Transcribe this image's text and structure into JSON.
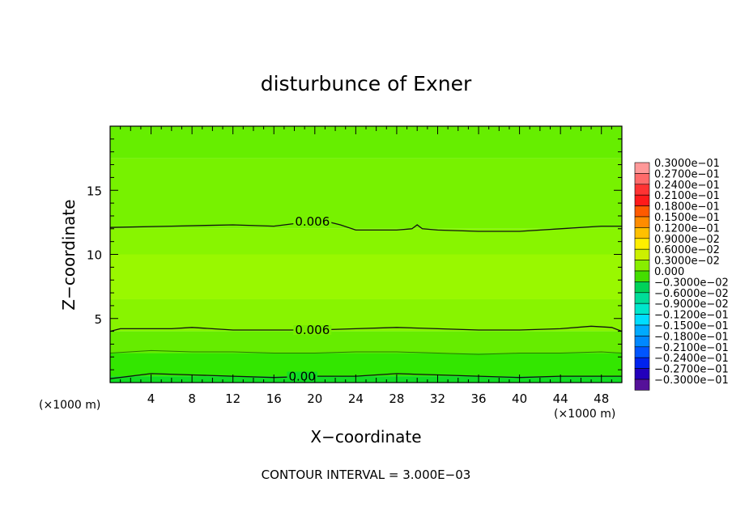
{
  "chart_data": {
    "type": "contour",
    "title": "disturbunce of Exner",
    "xlabel": "X−coordinate",
    "ylabel": "Z−coordinate",
    "x_unit": "(×1000 m)",
    "y_unit": "(×1000 m)",
    "xlim": [
      0,
      50
    ],
    "ylim": [
      0,
      20
    ],
    "x_ticks": [
      4,
      8,
      12,
      16,
      20,
      24,
      28,
      32,
      36,
      40,
      44,
      48
    ],
    "y_ticks": [
      5,
      10,
      15
    ],
    "footer": "CONTOUR INTERVAL = 3.000E−03",
    "contour_interval": 0.003,
    "grid": false,
    "contours": [
      {
        "level": 0.006,
        "label": "0.006",
        "points": [
          [
            0,
            12.1
          ],
          [
            6,
            12.2
          ],
          [
            12,
            12.3
          ],
          [
            16,
            12.2
          ],
          [
            19,
            12.5
          ],
          [
            21,
            12.6
          ],
          [
            22.5,
            12.3
          ],
          [
            24,
            11.9
          ],
          [
            26,
            11.9
          ],
          [
            28,
            11.9
          ],
          [
            29.5,
            12.0
          ],
          [
            30,
            12.3
          ],
          [
            30.5,
            12.0
          ],
          [
            32,
            11.9
          ],
          [
            36,
            11.8
          ],
          [
            40,
            11.8
          ],
          [
            44,
            12.0
          ],
          [
            48,
            12.2
          ],
          [
            50,
            12.2
          ]
        ],
        "label_at": 20
      },
      {
        "level": 0.006,
        "label": "0.006",
        "points": [
          [
            0,
            4.0
          ],
          [
            1,
            4.2
          ],
          [
            6,
            4.2
          ],
          [
            8,
            4.3
          ],
          [
            12,
            4.1
          ],
          [
            16,
            4.1
          ],
          [
            20,
            4.1
          ],
          [
            24,
            4.2
          ],
          [
            28,
            4.3
          ],
          [
            32,
            4.2
          ],
          [
            36,
            4.1
          ],
          [
            40,
            4.1
          ],
          [
            44,
            4.2
          ],
          [
            47,
            4.4
          ],
          [
            49,
            4.3
          ],
          [
            50,
            4.0
          ]
        ],
        "label_at": 20
      },
      {
        "level": 0.0,
        "label": "0.00",
        "points": [
          [
            0,
            0.3
          ],
          [
            4,
            0.7
          ],
          [
            8,
            0.6
          ],
          [
            12,
            0.5
          ],
          [
            16,
            0.4
          ],
          [
            20,
            0.5
          ],
          [
            24,
            0.5
          ],
          [
            28,
            0.7
          ],
          [
            32,
            0.6
          ],
          [
            36,
            0.5
          ],
          [
            40,
            0.4
          ],
          [
            44,
            0.5
          ],
          [
            48,
            0.5
          ],
          [
            50,
            0.5
          ]
        ],
        "label_at": 19
      }
    ],
    "thin_contours": [
      {
        "points": [
          [
            0,
            2.3
          ],
          [
            4,
            2.5
          ],
          [
            8,
            2.4
          ],
          [
            12,
            2.4
          ],
          [
            16,
            2.3
          ],
          [
            20,
            2.3
          ],
          [
            24,
            2.4
          ],
          [
            28,
            2.4
          ],
          [
            32,
            2.3
          ],
          [
            36,
            2.2
          ],
          [
            40,
            2.3
          ],
          [
            44,
            2.3
          ],
          [
            48,
            2.4
          ],
          [
            50,
            2.3
          ]
        ]
      }
    ],
    "fill_bands": [
      {
        "from": 17.5,
        "to": 20,
        "color": "#66ee00"
      },
      {
        "from": 12.0,
        "to": 17.5,
        "color": "#77f200"
      },
      {
        "from": 10.0,
        "to": 12.0,
        "color": "#88f500"
      },
      {
        "from": 6.5,
        "to": 10.0,
        "color": "#99f800"
      },
      {
        "from": 4.0,
        "to": 6.5,
        "color": "#88f400"
      },
      {
        "from": 2.3,
        "to": 4.0,
        "color": "#66ec00"
      },
      {
        "from": 0.5,
        "to": 2.3,
        "color": "#33e600"
      },
      {
        "from": 0.0,
        "to": 0.5,
        "color": "#11dd22"
      }
    ],
    "colorbar": [
      {
        "label": "0.3000e−01",
        "color": "#ff9999"
      },
      {
        "label": "0.2700e−01",
        "color": "#ff6b6b"
      },
      {
        "label": "0.2400e−01",
        "color": "#ff3333"
      },
      {
        "label": "0.2100e−01",
        "color": "#ff1a1a"
      },
      {
        "label": "0.1800e−01",
        "color": "#ff5a00"
      },
      {
        "label": "0.1500e−01",
        "color": "#ff8c00"
      },
      {
        "label": "0.1200e−01",
        "color": "#ffc000"
      },
      {
        "label": "0.9000e−02",
        "color": "#ffee00"
      },
      {
        "label": "0.6000e−02",
        "color": "#ccf000"
      },
      {
        "label": "0.3000e−02",
        "color": "#88ee00"
      },
      {
        "label": "0.000",
        "color": "#44dd00"
      },
      {
        "label": "−0.3000e−02",
        "color": "#00d25a"
      },
      {
        "label": "−0.6000e−02",
        "color": "#00dd99"
      },
      {
        "label": "−0.9000e−02",
        "color": "#00e6cc"
      },
      {
        "label": "−0.1200e−01",
        "color": "#00ddff"
      },
      {
        "label": "−0.1500e−01",
        "color": "#00aaff"
      },
      {
        "label": "−0.1800e−01",
        "color": "#0088ff"
      },
      {
        "label": "−0.2100e−01",
        "color": "#0055ff"
      },
      {
        "label": "−0.2400e−01",
        "color": "#0022ee"
      },
      {
        "label": "−0.2700e−01",
        "color": "#2200bb"
      },
      {
        "label": "−0.3000e−01",
        "color": "#551199"
      }
    ]
  }
}
